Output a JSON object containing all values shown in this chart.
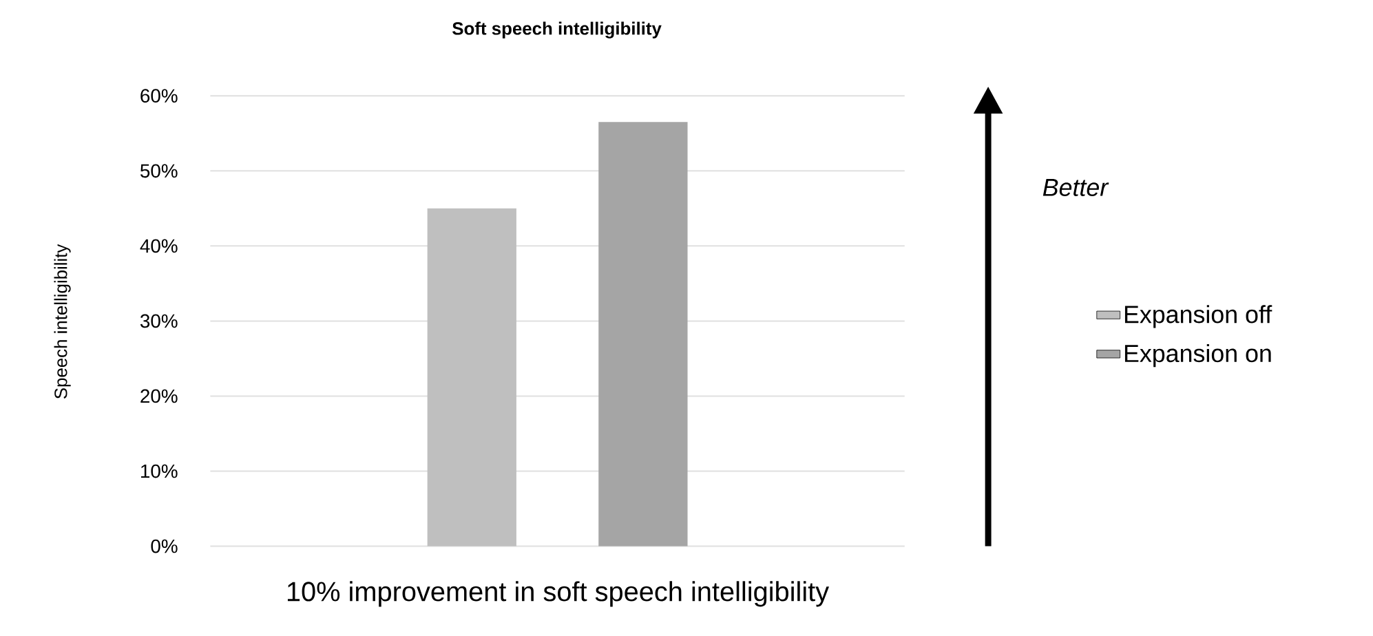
{
  "chart_data": {
    "type": "bar",
    "title": "Soft speech intelligibility",
    "ylabel": "Speech intelligibility",
    "categories": [
      "10% improvement in soft speech intelligibility"
    ],
    "series": [
      {
        "name": "Expansion off",
        "color": "#bfbfbf",
        "values": [
          45
        ]
      },
      {
        "name": "Expansion on",
        "color": "#a5a5a5",
        "values": [
          56.5
        ]
      }
    ],
    "ylim": [
      0,
      60
    ],
    "yticks": [
      {
        "value": 0,
        "label": "0%"
      },
      {
        "value": 10,
        "label": "10%"
      },
      {
        "value": 20,
        "label": "20%"
      },
      {
        "value": 30,
        "label": "30%"
      },
      {
        "value": 40,
        "label": "40%"
      },
      {
        "value": 50,
        "label": "50%"
      },
      {
        "value": 60,
        "label": "60%"
      }
    ],
    "grid": "y",
    "legend": "right",
    "annotations": [
      "Better"
    ]
  }
}
